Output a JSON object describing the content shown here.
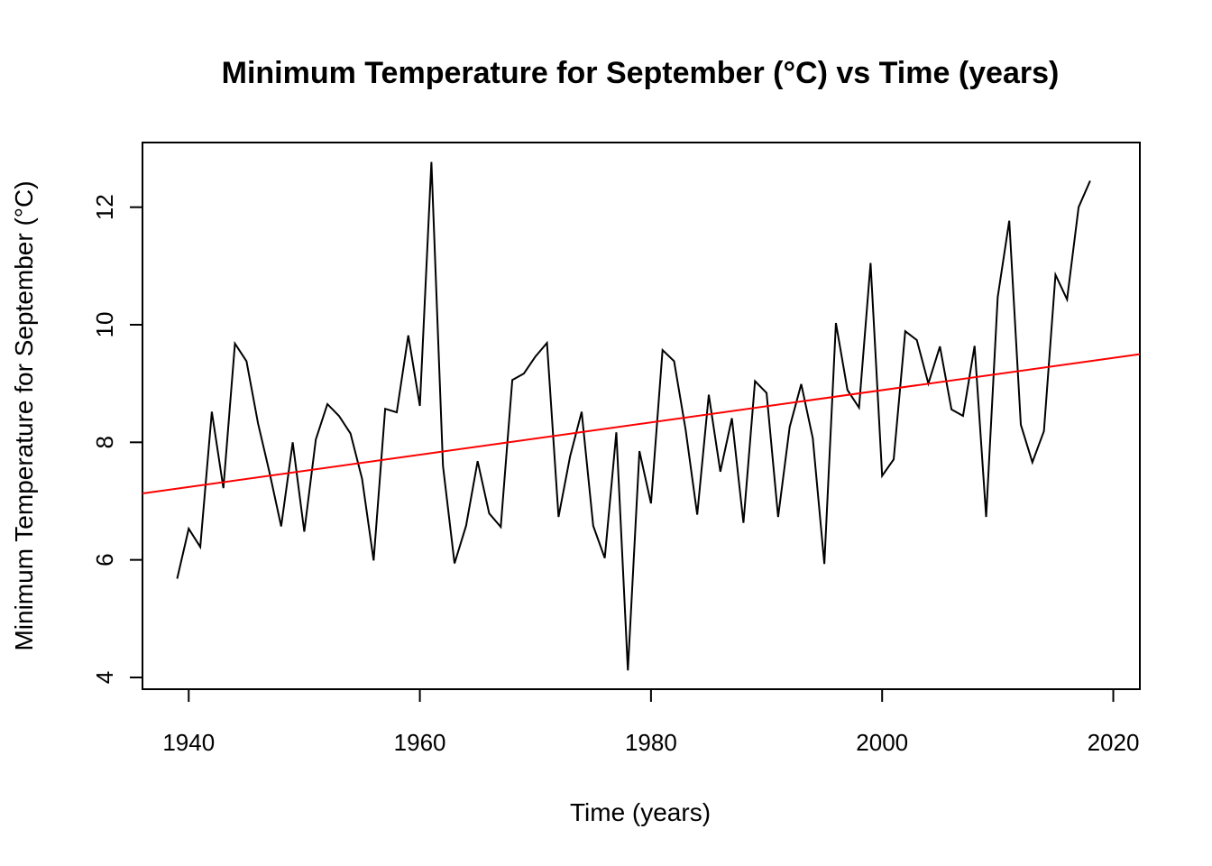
{
  "chart_data": {
    "type": "line",
    "title": "Minimum Temperature for September (°C) vs Time (years)",
    "xlabel": "Time (years)",
    "ylabel": "Minimum Temperature for September (°C)",
    "xlim": [
      1936,
      2022.3
    ],
    "ylim": [
      3.8,
      13.1
    ],
    "xticks": [
      1940,
      1960,
      1980,
      2000,
      2020
    ],
    "yticks": [
      4,
      6,
      8,
      10,
      12
    ],
    "grid": false,
    "colors": {
      "series": "#000000",
      "trend": "#ff0000"
    },
    "series": [
      {
        "kind": "observed",
        "x": [
          1939,
          1940,
          1941,
          1942,
          1943,
          1944,
          1945,
          1946,
          1947,
          1948,
          1949,
          1950,
          1951,
          1952,
          1953,
          1954,
          1955,
          1956,
          1957,
          1958,
          1959,
          1960,
          1961,
          1962,
          1963,
          1964,
          1965,
          1966,
          1967,
          1968,
          1969,
          1970,
          1971,
          1972,
          1973,
          1974,
          1975,
          1976,
          1977,
          1978,
          1979,
          1980,
          1981,
          1982,
          1983,
          1984,
          1985,
          1986,
          1987,
          1988,
          1989,
          1990,
          1991,
          1992,
          1993,
          1994,
          1995,
          1996,
          1997,
          1998,
          1999,
          2000,
          2001,
          2002,
          2003,
          2004,
          2005,
          2006,
          2007,
          2008,
          2009,
          2010,
          2011,
          2012,
          2013,
          2014,
          2015,
          2016,
          2017,
          2018
        ],
        "values": [
          5.68,
          6.53,
          6.22,
          8.52,
          7.22,
          9.68,
          9.38,
          8.32,
          7.48,
          6.57,
          8.0,
          6.48,
          8.05,
          8.65,
          8.45,
          8.15,
          7.38,
          5.99,
          8.57,
          8.51,
          9.82,
          8.62,
          12.77,
          7.6,
          5.94,
          6.58,
          7.68,
          6.79,
          6.56,
          9.06,
          9.17,
          9.46,
          9.69,
          6.73,
          7.76,
          8.52,
          6.58,
          6.03,
          8.17,
          4.12,
          7.85,
          6.96,
          9.57,
          9.38,
          8.21,
          6.77,
          8.81,
          7.5,
          8.41,
          6.63,
          9.04,
          8.84,
          6.73,
          8.26,
          8.99,
          8.07,
          5.93,
          10.03,
          8.89,
          8.59,
          11.05,
          7.43,
          7.71,
          9.89,
          9.74,
          9.0,
          9.63,
          8.56,
          8.45,
          9.64,
          6.73,
          10.47,
          11.77,
          8.3,
          7.66,
          8.19,
          10.85,
          10.43,
          12.0,
          12.45
        ]
      },
      {
        "kind": "trend",
        "x": [
          1936,
          2022.3
        ],
        "values": [
          7.13,
          9.5
        ]
      }
    ]
  }
}
